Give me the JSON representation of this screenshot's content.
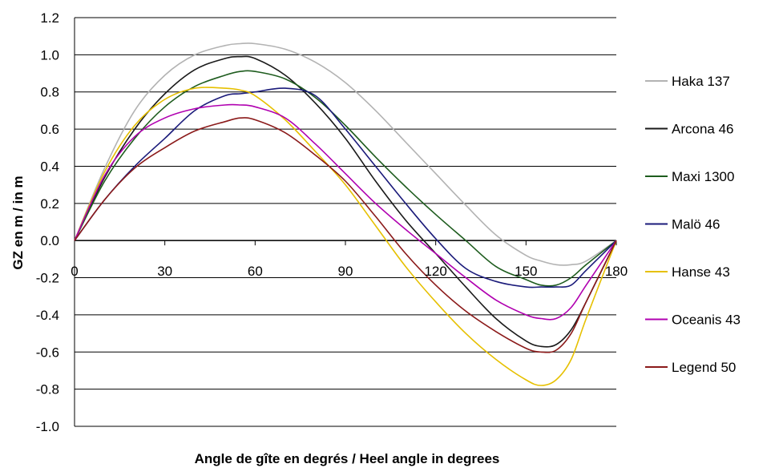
{
  "chart_data": {
    "type": "line",
    "title": "",
    "xlabel": "Angle de gîte en degrés / Heel angle in degrees",
    "ylabel": "GZ en m / in m",
    "xlim": [
      0,
      180
    ],
    "ylim": [
      -1.0,
      1.2
    ],
    "x_ticks": [
      "0",
      "30",
      "60",
      "90",
      "120",
      "150",
      "180"
    ],
    "y_ticks": [
      "1.2",
      "1.0",
      "0.8",
      "0.6",
      "0.4",
      "0.2",
      "0.0",
      "-0.2",
      "-0.4",
      "-0.6",
      "-0.8",
      "-1.0"
    ],
    "grid": "horizontal",
    "legend_position": "right",
    "x": [
      0,
      10,
      20,
      30,
      40,
      50,
      55,
      60,
      70,
      80,
      90,
      100,
      110,
      120,
      130,
      140,
      150,
      155,
      160,
      165,
      170,
      180
    ],
    "series": [
      {
        "name": "Haka 137",
        "color": "#b3b3b3",
        "values": [
          0,
          0.39,
          0.7,
          0.89,
          1.0,
          1.05,
          1.06,
          1.06,
          1.03,
          0.96,
          0.85,
          0.7,
          0.53,
          0.36,
          0.19,
          0.03,
          -0.08,
          -0.11,
          -0.13,
          -0.13,
          -0.11,
          0
        ]
      },
      {
        "name": "Arcona 46",
        "color": "#1a1a1a",
        "values": [
          0,
          0.34,
          0.6,
          0.79,
          0.92,
          0.98,
          0.99,
          0.98,
          0.89,
          0.74,
          0.55,
          0.32,
          0.11,
          -0.07,
          -0.25,
          -0.42,
          -0.54,
          -0.57,
          -0.56,
          -0.48,
          -0.33,
          0
        ]
      },
      {
        "name": "Maxi 1300",
        "color": "#1e5c1e",
        "values": [
          0,
          0.32,
          0.55,
          0.72,
          0.83,
          0.89,
          0.91,
          0.91,
          0.87,
          0.77,
          0.62,
          0.45,
          0.29,
          0.14,
          0.0,
          -0.14,
          -0.21,
          -0.24,
          -0.24,
          -0.2,
          -0.13,
          0
        ]
      },
      {
        "name": "Malö 46",
        "color": "#1a1a7a",
        "values": [
          0,
          0.22,
          0.4,
          0.55,
          0.7,
          0.78,
          0.79,
          0.8,
          0.82,
          0.78,
          0.6,
          0.4,
          0.2,
          0.01,
          -0.15,
          -0.22,
          -0.25,
          -0.25,
          -0.25,
          -0.24,
          -0.16,
          0
        ]
      },
      {
        "name": "Hanse 43",
        "color": "#e6c000",
        "values": [
          0,
          0.37,
          0.62,
          0.76,
          0.82,
          0.82,
          0.81,
          0.78,
          0.65,
          0.48,
          0.3,
          0.08,
          -0.14,
          -0.33,
          -0.5,
          -0.64,
          -0.75,
          -0.78,
          -0.75,
          -0.64,
          -0.42,
          0
        ]
      },
      {
        "name": "Oceanis 43",
        "color": "#b000b0",
        "values": [
          0,
          0.35,
          0.56,
          0.66,
          0.71,
          0.73,
          0.73,
          0.72,
          0.66,
          0.52,
          0.36,
          0.2,
          0.06,
          -0.07,
          -0.2,
          -0.32,
          -0.4,
          -0.42,
          -0.42,
          -0.36,
          -0.24,
          0
        ]
      },
      {
        "name": "Legend 50",
        "color": "#8b1a1a",
        "values": [
          0,
          0.22,
          0.39,
          0.5,
          0.59,
          0.64,
          0.66,
          0.65,
          0.58,
          0.46,
          0.32,
          0.13,
          -0.07,
          -0.24,
          -0.38,
          -0.49,
          -0.58,
          -0.6,
          -0.59,
          -0.5,
          -0.33,
          0
        ]
      }
    ]
  }
}
